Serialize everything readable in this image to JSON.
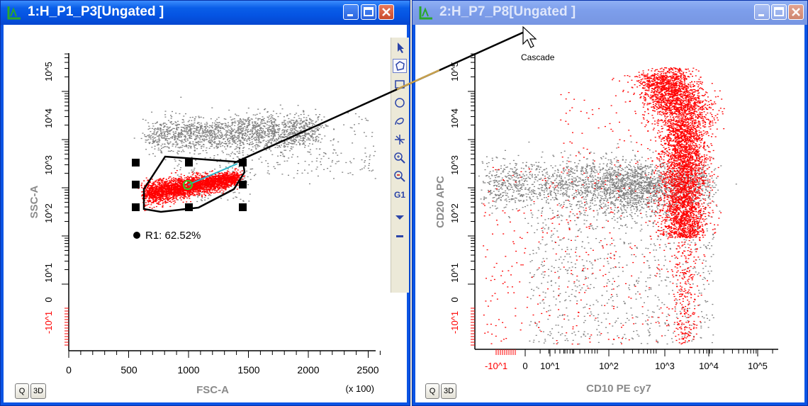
{
  "window1": {
    "title": "1:H_P1_P3[Ungated ]",
    "x_label": "FSC-A",
    "y_label": "SSC-A",
    "x_ticks": [
      "0",
      "500",
      "1000",
      "1500",
      "2000",
      "2500"
    ],
    "x_scale_note": "(x 100)",
    "y_ticks": [
      "10^5",
      "10^4",
      "10^3",
      "10^2",
      "10^1",
      "0",
      "-10^1"
    ],
    "region_label": "R1: 62.52%",
    "btn_q": "Q",
    "btn_3d": "3D"
  },
  "window2": {
    "title": "2:H_P7_P8[Ungated ]",
    "x_label": "CD10 PE cy7",
    "y_label": "CD20 APC",
    "x_ticks": [
      "-10^1",
      "0",
      "10^1",
      "10^2",
      "10^3",
      "10^4",
      "10^5"
    ],
    "y_ticks": [
      "10^5",
      "10^4",
      "10^3",
      "10^2",
      "10^1",
      "0",
      "-10^1"
    ],
    "btn_q": "Q",
    "btn_3d": "3D"
  },
  "tooltip": "Cascade",
  "tools": [
    "pointer-icon",
    "polygon-icon",
    "rectangle-icon",
    "ellipse-icon",
    "freehand-icon",
    "quadrant-icon",
    "zoom-in-icon",
    "zoom-out-icon",
    "gate-g1-icon",
    "dropdown-icon",
    "minus-icon"
  ],
  "tool_g1_label": "G1",
  "colors": {
    "gated": "#ff0000",
    "ungated": "#808080",
    "title_active": "#0554e3"
  }
}
